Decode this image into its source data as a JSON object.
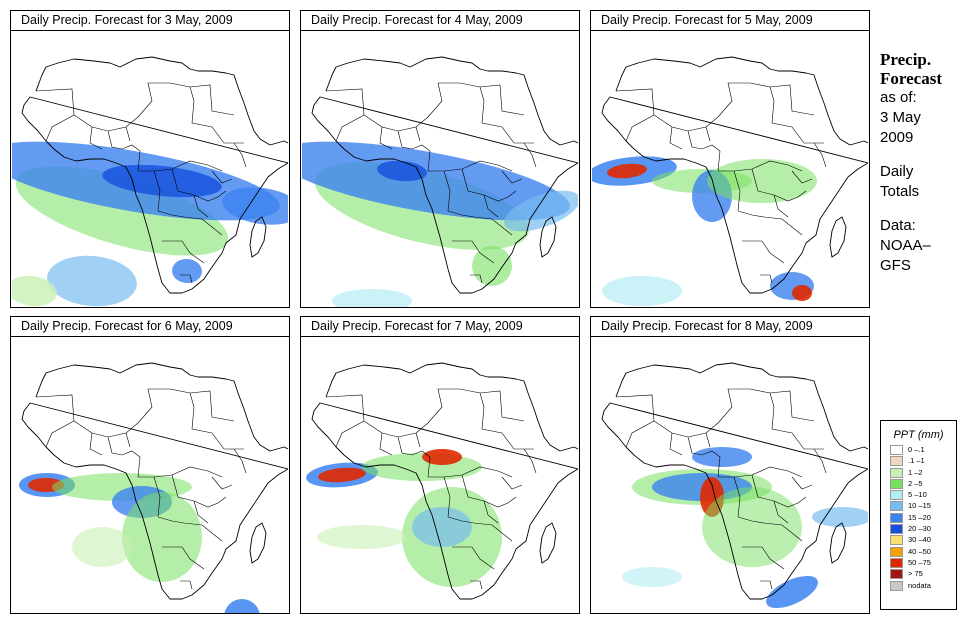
{
  "panels": [
    {
      "title": "Daily Precip. Forecast for  3 May, 2009",
      "style": "d1"
    },
    {
      "title": "Daily Precip. Forecast for  4 May, 2009",
      "style": "d2"
    },
    {
      "title": "Daily Precip. Forecast for  5 May, 2009",
      "style": "d3"
    },
    {
      "title": "Daily Precip. Forecast for  6 May, 2009",
      "style": "d4"
    },
    {
      "title": "Daily Precip. Forecast for  7 May, 2009",
      "style": "d5"
    },
    {
      "title": "Daily Precip. Forecast for  8 May, 2009",
      "style": "d6"
    }
  ],
  "sidebar": {
    "heading1": "Precip.",
    "heading2": "Forecast",
    "asof": "as of:",
    "date1": "3 May",
    "date2": "2009",
    "totals1": "Daily",
    "totals2": "Totals",
    "data1": "Data:",
    "data2": "NOAA–",
    "data3": "GFS"
  },
  "legend": {
    "title": "PPT (mm)",
    "items": [
      {
        "label": "0 –.1",
        "color": "#ffffff"
      },
      {
        "label": ".1 –1",
        "color": "#eed9c0"
      },
      {
        "label": "1 –2",
        "color": "#c8f0b4"
      },
      {
        "label": "2 –5",
        "color": "#78e060"
      },
      {
        "label": "5 –10",
        "color": "#b4ecf4"
      },
      {
        "label": "10 –15",
        "color": "#78bcf0"
      },
      {
        "label": "15 –20",
        "color": "#3c82f0"
      },
      {
        "label": "20 –30",
        "color": "#1450dc"
      },
      {
        "label": "30 –40",
        "color": "#f8e070"
      },
      {
        "label": "40 –50",
        "color": "#f8a000"
      },
      {
        "label": "50 –75",
        "color": "#e02800"
      },
      {
        "label": "> 75",
        "color": "#a01414"
      },
      {
        "label": "nodata",
        "color": "#c8c8c8"
      }
    ]
  }
}
